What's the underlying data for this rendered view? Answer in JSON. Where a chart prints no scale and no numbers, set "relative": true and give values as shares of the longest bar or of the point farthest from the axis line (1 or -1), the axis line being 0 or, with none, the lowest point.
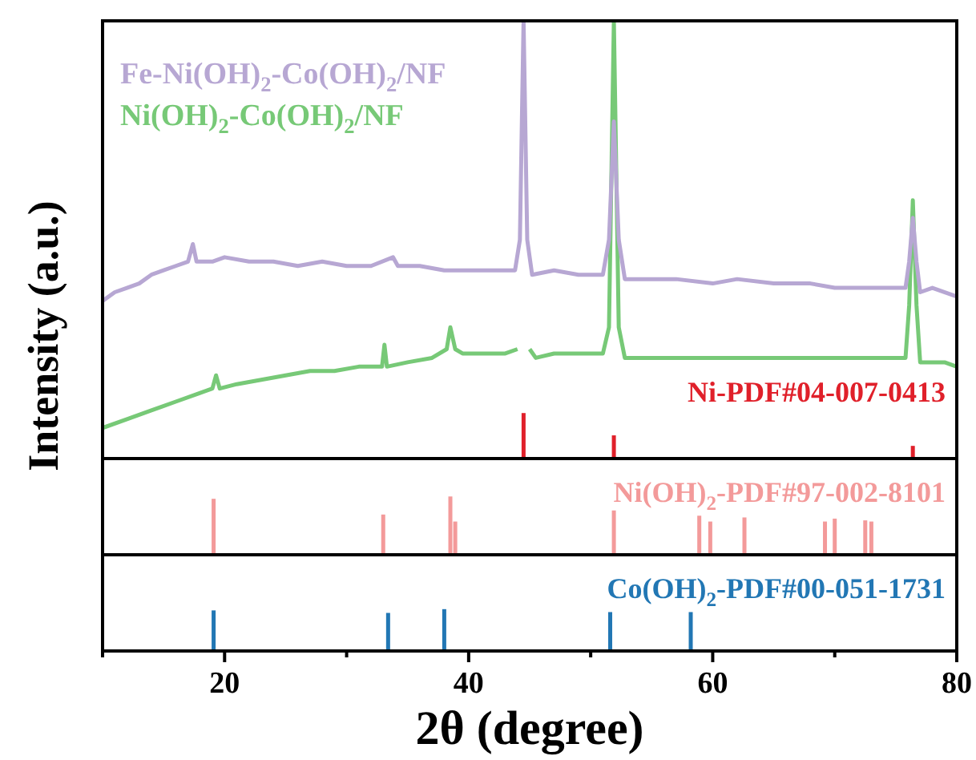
{
  "chart_data": [
    {
      "type": "line",
      "ylabel": "Intensity (a.u.)",
      "relative": true,
      "xlim": [
        10,
        80
      ],
      "tick_labels": false,
      "legend": "top left",
      "line_style": "solid",
      "marker": "none",
      "series": [
        {
          "name": "Fe-Ni(OH)$_{2}$-Co(OH)$_{2}$/NF",
          "color": "#b7a7d3",
          "x": [
            10,
            11,
            12,
            13,
            14,
            15,
            16,
            17,
            17.4,
            17.7,
            19,
            20,
            22,
            24,
            26,
            28,
            30,
            32,
            33.8,
            34.2,
            36,
            38,
            40,
            42,
            43.8,
            44.2,
            44.5,
            44.8,
            45.2,
            47,
            49,
            51,
            51.5,
            51.9,
            52.3,
            52.8,
            55,
            57,
            60,
            62,
            65,
            68,
            70,
            72,
            74,
            75.8,
            76.1,
            76.4,
            76.7,
            77,
            78,
            80
          ],
          "values": [
            0.36,
            0.38,
            0.39,
            0.4,
            0.42,
            0.43,
            0.44,
            0.45,
            0.49,
            0.45,
            0.45,
            0.46,
            0.45,
            0.45,
            0.44,
            0.45,
            0.44,
            0.44,
            0.46,
            0.44,
            0.44,
            0.43,
            0.43,
            0.43,
            0.43,
            0.5,
            1.0,
            0.5,
            0.42,
            0.43,
            0.42,
            0.42,
            0.5,
            0.77,
            0.5,
            0.41,
            0.41,
            0.41,
            0.4,
            0.41,
            0.4,
            0.4,
            0.39,
            0.39,
            0.39,
            0.39,
            0.45,
            0.55,
            0.45,
            0.38,
            0.39,
            0.37
          ]
        },
        {
          "name": "Ni(OH)$_{2}$-Co(OH)$_{2}$/NF",
          "color": "#77c977",
          "x": [
            10,
            12,
            14,
            16,
            18,
            19,
            19.3,
            19.6,
            21,
            23,
            25,
            27,
            29,
            31,
            32.9,
            33.1,
            33.3,
            35,
            37,
            38.2,
            38.5,
            38.9,
            39.5,
            41,
            43,
            44,
            44.5,
            45,
            45.5,
            47,
            49,
            51,
            51.5,
            51.9,
            52.3,
            52.8,
            55,
            58,
            61,
            64,
            67,
            70,
            73,
            75.8,
            76.1,
            76.4,
            76.7,
            77,
            79,
            80
          ],
          "values": [
            0.07,
            0.09,
            0.11,
            0.13,
            0.15,
            0.16,
            0.19,
            0.16,
            0.17,
            0.18,
            0.19,
            0.2,
            0.2,
            0.21,
            0.21,
            0.26,
            0.21,
            0.22,
            0.23,
            0.25,
            0.3,
            0.25,
            0.24,
            0.24,
            0.24,
            0.25,
            null,
            0.25,
            0.23,
            0.24,
            0.24,
            0.24,
            0.3,
            1.0,
            0.3,
            0.23,
            0.23,
            0.23,
            0.23,
            0.23,
            0.23,
            0.23,
            0.23,
            0.23,
            0.35,
            0.59,
            0.35,
            0.22,
            0.22,
            0.21
          ]
        },
        {
          "type": "bar",
          "name": "Ni-PDF#04-007-0413",
          "color": "#e0202a",
          "x": [
            44.5,
            51.9,
            76.4
          ],
          "values": [
            0.104,
            0.053,
            0.029
          ]
        }
      ]
    },
    {
      "type": "bar",
      "relative": true,
      "xlim": [
        10,
        80
      ],
      "tick_labels": false,
      "series": [
        {
          "name": "Ni(OH)$_{2}$-PDF#97-002-8101",
          "color": "#f39a9a",
          "x": [
            19.1,
            33.0,
            38.5,
            38.9,
            51.9,
            58.9,
            59.8,
            62.6,
            69.2,
            70.0,
            72.5,
            73.0
          ],
          "values": [
            0.96,
            0.69,
            1,
            0.57,
            0.76,
            0.67,
            0.57,
            0.64,
            0.57,
            0.62,
            0.59,
            0.57
          ]
        }
      ]
    },
    {
      "type": "bar",
      "relative": true,
      "xlim": [
        10,
        80
      ],
      "xlabel": "2θ (degree)",
      "tick_labels": "x",
      "xticks": [
        {
          "value": 10,
          "label": null
        },
        20,
        {
          "value": 30,
          "label": null
        },
        40,
        {
          "value": 50,
          "label": null
        },
        60,
        {
          "value": 70,
          "label": null
        },
        80
      ],
      "series": [
        {
          "name": "Co(OH)$_{2}$-PDF#00-051-1731",
          "color": "#2277b4",
          "x": [
            19.1,
            33.4,
            38.0,
            51.6,
            58.2
          ],
          "values": [
            0.97,
            0.91,
            1,
            0.93,
            0.93
          ]
        }
      ]
    }
  ]
}
